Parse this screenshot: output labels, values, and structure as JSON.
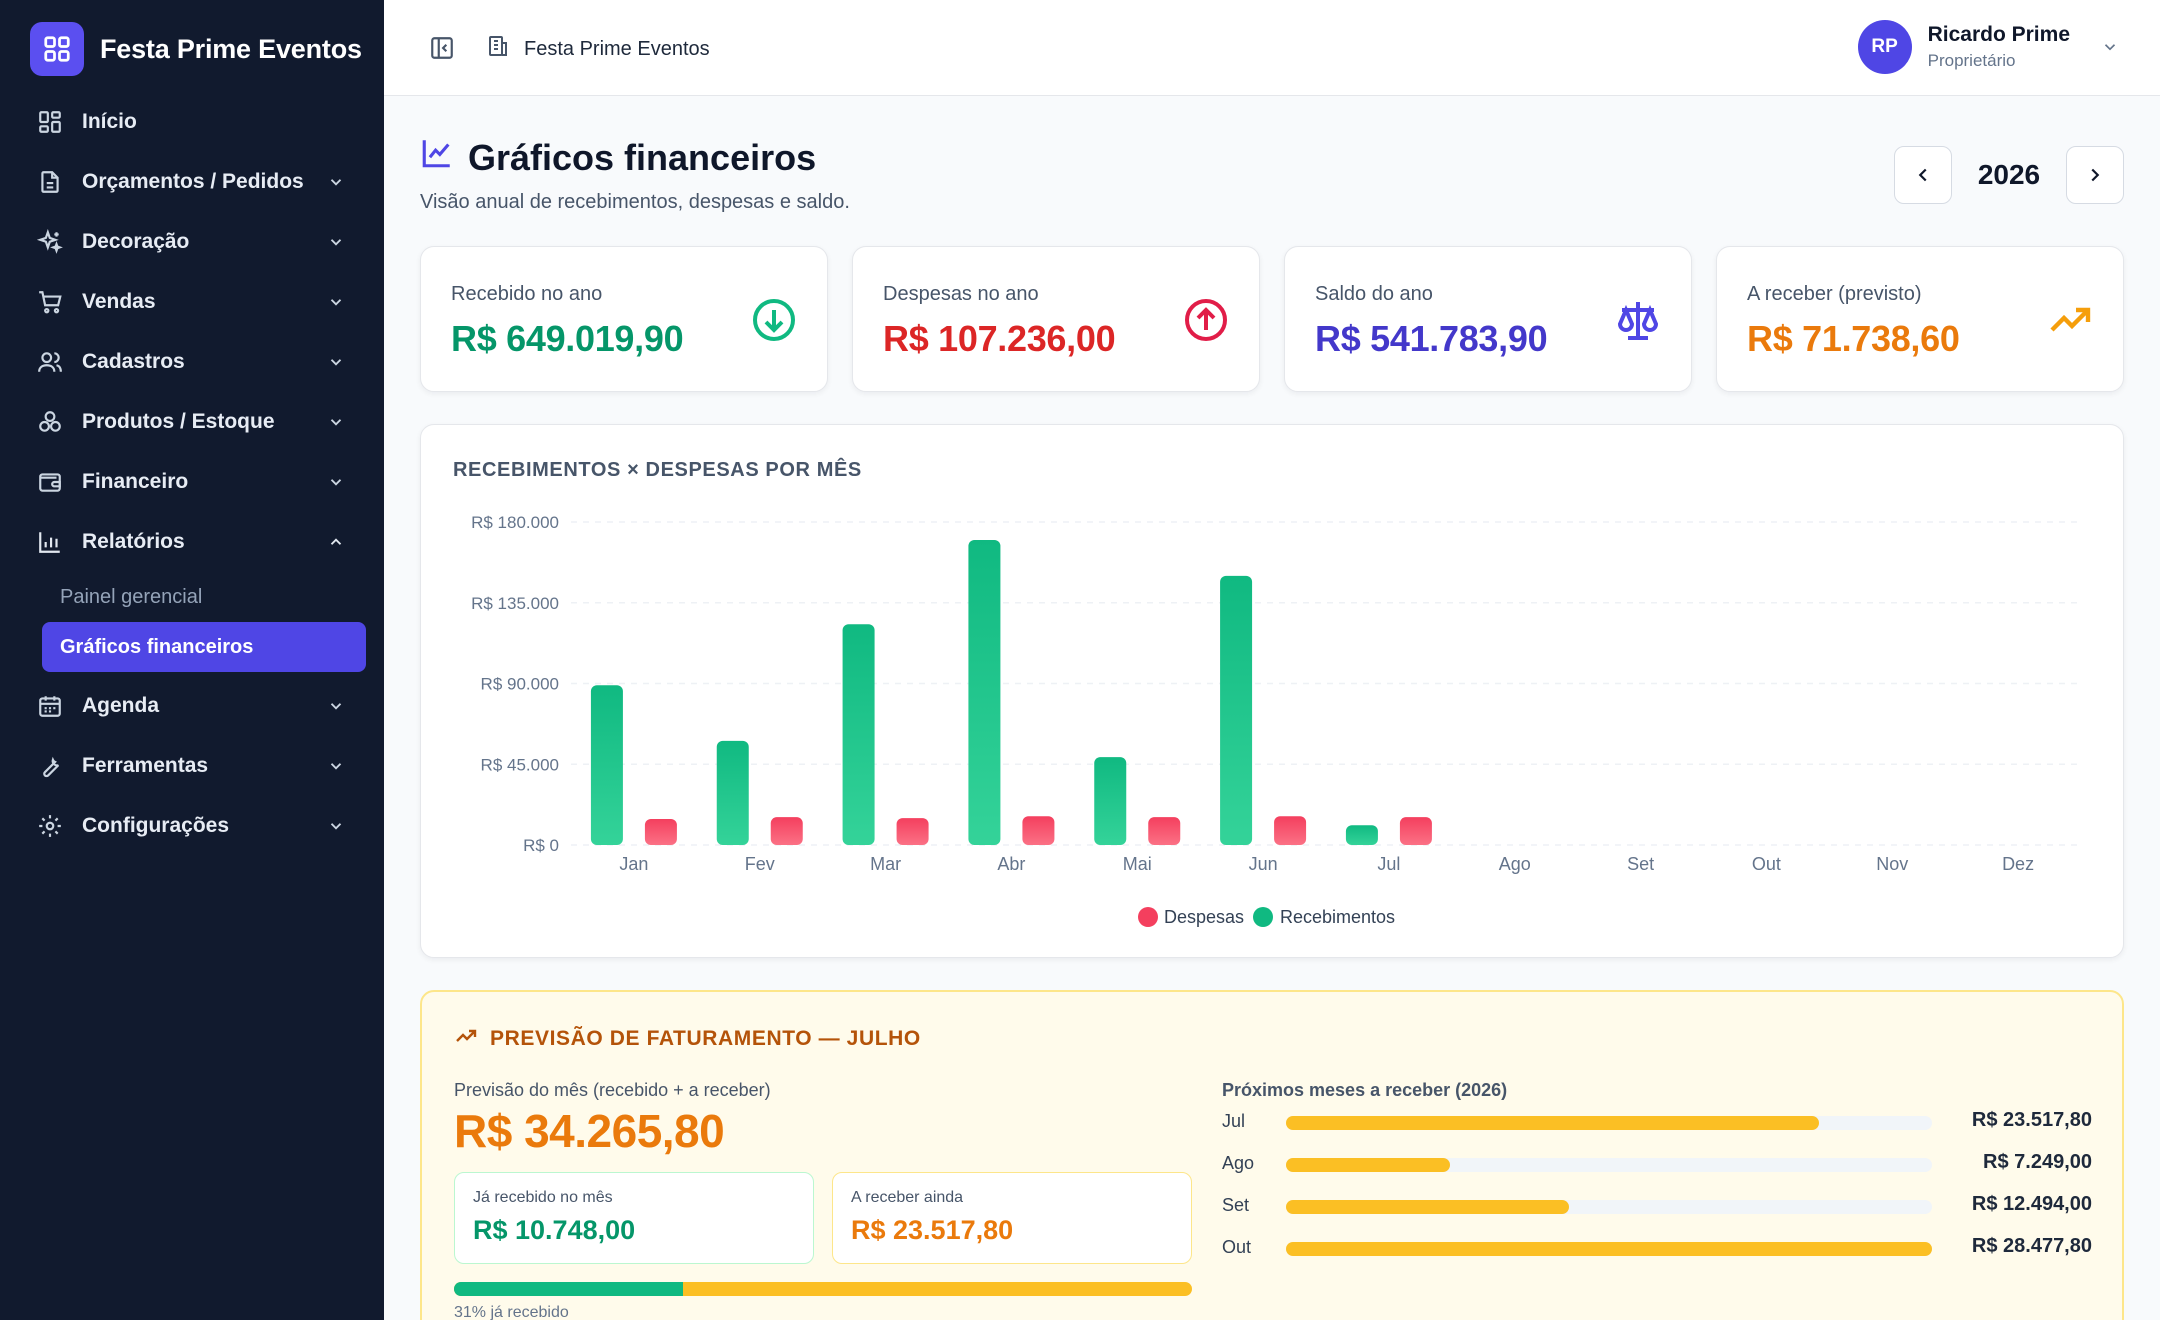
{
  "app": {
    "name": "Festa Prime Eventos"
  },
  "sidebar": {
    "items": [
      {
        "label": "Início",
        "icon": "dashboard-icon",
        "has_children": false
      },
      {
        "label": "Orçamentos / Pedidos",
        "icon": "document-icon",
        "has_children": true
      },
      {
        "label": "Decoração",
        "icon": "sparkles-icon",
        "has_children": true
      },
      {
        "label": "Vendas",
        "icon": "cart-icon",
        "has_children": true
      },
      {
        "label": "Cadastros",
        "icon": "users-icon",
        "has_children": true
      },
      {
        "label": "Produtos / Estoque",
        "icon": "boxes-icon",
        "has_children": true
      },
      {
        "label": "Financeiro",
        "icon": "wallet-icon",
        "has_children": true
      },
      {
        "label": "Relatórios",
        "icon": "bar-chart-icon",
        "has_children": true,
        "expanded": true
      }
    ],
    "sub_items": [
      {
        "label": "Painel gerencial",
        "active": false
      },
      {
        "label": "Gráficos financeiros",
        "active": true
      }
    ],
    "items_after": [
      {
        "label": "Agenda",
        "icon": "calendar-icon"
      },
      {
        "label": "Ferramentas",
        "icon": "wrench-icon"
      },
      {
        "label": "Configurações",
        "icon": "gear-icon"
      }
    ]
  },
  "topbar": {
    "breadcrumb": "Festa Prime Eventos",
    "user": {
      "initials": "RP",
      "name": "Ricardo Prime",
      "role": "Proprietário"
    }
  },
  "page": {
    "title": "Gráficos financeiros",
    "subtitle": "Visão anual de recebimentos, despesas e saldo.",
    "year": "2026"
  },
  "kpis": [
    {
      "label": "Recebido no ano",
      "value": "R$ 649.019,90",
      "color": "#059669",
      "icon": "arrow-down-circle-icon"
    },
    {
      "label": "Despesas no ano",
      "value": "R$ 107.236,00",
      "color": "#dc2626",
      "icon": "arrow-up-circle-icon"
    },
    {
      "label": "Saldo do ano",
      "value": "R$ 541.783,90",
      "color": "#4338ca",
      "icon": "scale-icon"
    },
    {
      "label": "A receber (previsto)",
      "value": "R$ 71.738,60",
      "color": "#ea7a0c",
      "icon": "trending-up-icon"
    }
  ],
  "chart_data": {
    "type": "bar",
    "title": "RECEBIMENTOS × DESPESAS POR MÊS",
    "categories": [
      "Jan",
      "Fev",
      "Mar",
      "Abr",
      "Mai",
      "Jun",
      "Jul",
      "Ago",
      "Set",
      "Out",
      "Nov",
      "Dez"
    ],
    "series": [
      {
        "name": "Recebimentos",
        "color": "#10b981",
        "values": [
          89000,
          58000,
          123000,
          170000,
          49000,
          150000,
          11000,
          0,
          0,
          0,
          0,
          0
        ]
      },
      {
        "name": "Despesas",
        "color": "#f43f5e",
        "values": [
          14500,
          15500,
          15000,
          16000,
          15500,
          16000,
          15500,
          0,
          0,
          0,
          0,
          0
        ]
      }
    ],
    "ylim": [
      0,
      180000
    ],
    "yticks": [
      0,
      45000,
      90000,
      135000,
      180000
    ],
    "ytick_labels": [
      "R$ 0",
      "R$ 45.000",
      "R$ 90.000",
      "R$ 135.000",
      "R$ 180.000"
    ],
    "legend": [
      "Despesas",
      "Recebimentos"
    ],
    "legend_position": "bottom",
    "grid": true
  },
  "forecast": {
    "title": "PREVISÃO DE FATURAMENTO — JULHO",
    "subtitle": "Previsão do mês (recebido + a receber)",
    "total": "R$ 34.265,80",
    "received_label": "Já recebido no mês",
    "received_value": "R$ 10.748,00",
    "pending_label": "A receber ainda",
    "pending_value": "R$ 23.517,80",
    "progress_pct": 31,
    "progress_caption": "31% já recebido",
    "next_title": "Próximos meses a receber (2026)",
    "next_months": [
      {
        "month": "Jul",
        "value": "R$ 23.517,80",
        "amount": 23517.8
      },
      {
        "month": "Ago",
        "value": "R$ 7.249,00",
        "amount": 7249.0
      },
      {
        "month": "Set",
        "value": "R$ 12.494,00",
        "amount": 12494.0
      },
      {
        "month": "Out",
        "value": "R$ 28.477,80",
        "amount": 28477.8
      }
    ]
  }
}
